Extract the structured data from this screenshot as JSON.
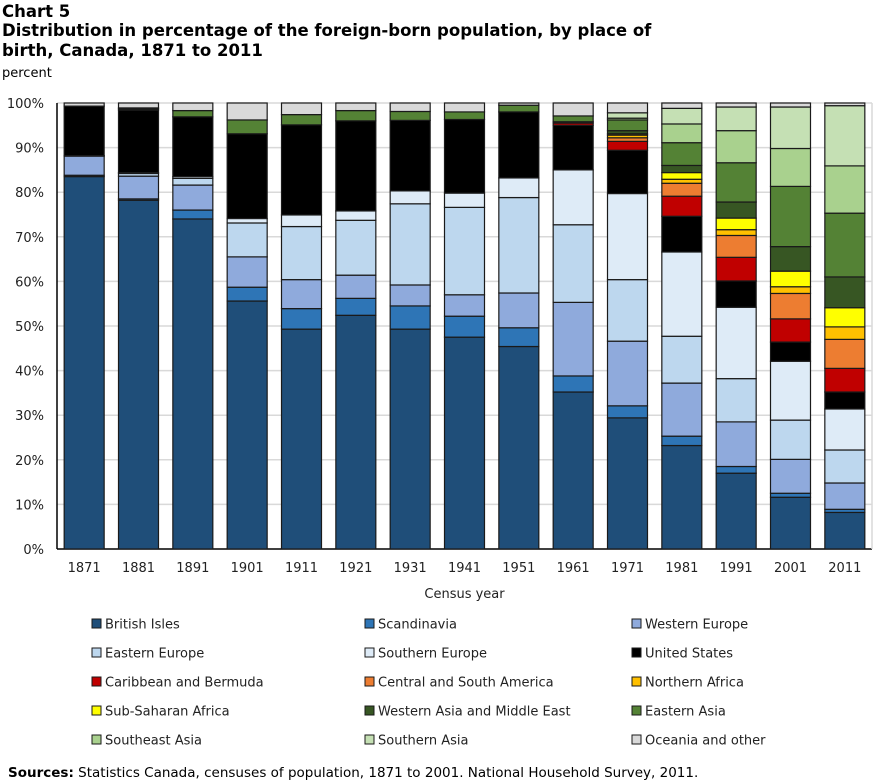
{
  "chart_data": {
    "type": "bar",
    "stacked": true,
    "label": "Chart 5",
    "title": "Distribution in percentage of the foreign-born population, by place of birth, Canada, 1871 to 2011",
    "ylabel": "percent",
    "xlabel": "Census year",
    "ylim": [
      0,
      100
    ],
    "yticks": [
      "0%",
      "10%",
      "20%",
      "30%",
      "40%",
      "50%",
      "60%",
      "70%",
      "80%",
      "90%",
      "100%"
    ],
    "grid": true,
    "legend_position": "bottom",
    "categories": [
      "1871",
      "1881",
      "1891",
      "1901",
      "1911",
      "1921",
      "1931",
      "1941",
      "1951",
      "1961",
      "1971",
      "1981",
      "1991",
      "2001",
      "2011"
    ],
    "series": [
      {
        "name": "British Isles",
        "color": "#1f4e79",
        "values": [
          83.5,
          78.2,
          74.0,
          55.6,
          49.3,
          52.4,
          49.3,
          47.5,
          45.4,
          35.2,
          29.4,
          23.2,
          17.0,
          11.6,
          8.2
        ]
      },
      {
        "name": "Scandinavia",
        "color": "#2e75b6",
        "values": [
          0.3,
          0.3,
          2.0,
          3.1,
          4.6,
          3.8,
          5.2,
          4.7,
          4.2,
          3.6,
          2.7,
          2.1,
          1.5,
          0.9,
          0.7
        ]
      },
      {
        "name": "Western Europe",
        "color": "#8faadc",
        "values": [
          4.3,
          5.1,
          5.6,
          6.8,
          6.5,
          5.2,
          4.7,
          4.8,
          7.8,
          16.5,
          14.5,
          11.9,
          10.0,
          7.6,
          5.9
        ]
      },
      {
        "name": "Eastern Europe",
        "color": "#bdd7ee",
        "values": [
          0.0,
          0.6,
          1.5,
          7.6,
          11.9,
          12.3,
          18.2,
          19.6,
          21.4,
          17.4,
          13.8,
          10.5,
          9.7,
          8.8,
          7.4
        ]
      },
      {
        "name": "Southern Europe",
        "color": "#deebf7",
        "values": [
          0.1,
          0.2,
          0.4,
          1.0,
          2.6,
          2.1,
          2.9,
          3.2,
          4.4,
          12.3,
          19.3,
          18.9,
          16.0,
          13.2,
          9.2
        ]
      },
      {
        "name": "United States",
        "color": "#000000",
        "values": [
          11.1,
          14.0,
          13.4,
          19.0,
          20.2,
          20.2,
          15.8,
          16.5,
          14.8,
          10.0,
          9.7,
          8.0,
          5.9,
          4.3,
          3.8
        ]
      },
      {
        "name": "Caribbean and Bermuda",
        "color": "#c00000",
        "values": [
          0,
          0,
          0,
          0,
          0,
          0,
          0,
          0,
          0,
          0.5,
          2.0,
          4.5,
          5.3,
          5.2,
          5.3
        ]
      },
      {
        "name": "Central and South America",
        "color": "#ed7d31",
        "values": [
          0,
          0,
          0,
          0,
          0,
          0,
          0,
          0,
          0,
          0,
          0.8,
          2.9,
          4.9,
          5.7,
          6.5
        ]
      },
      {
        "name": "Northern Africa",
        "color": "#ffc000",
        "values": [
          0,
          0,
          0,
          0,
          0,
          0,
          0,
          0,
          0,
          0,
          0.6,
          0.9,
          1.3,
          1.5,
          2.8
        ]
      },
      {
        "name": "Sub-Saharan Africa",
        "color": "#ffff00",
        "values": [
          0,
          0,
          0,
          0,
          0,
          0,
          0,
          0,
          0,
          0,
          0.3,
          1.5,
          2.6,
          3.5,
          4.3
        ]
      },
      {
        "name": "Western Asia and Middle East",
        "color": "#375623",
        "values": [
          0,
          0.3,
          0,
          0,
          0,
          0,
          0,
          0,
          0,
          0.3,
          0.7,
          1.6,
          3.6,
          5.5,
          6.9
        ]
      },
      {
        "name": "Eastern Asia",
        "color": "#548235",
        "values": [
          0,
          0.2,
          1.4,
          3.1,
          2.3,
          2.3,
          2.0,
          1.7,
          1.5,
          1.3,
          2.4,
          5.1,
          8.8,
          13.5,
          14.3
        ]
      },
      {
        "name": "Southeast Asia",
        "color": "#a9d18e",
        "values": [
          0,
          0,
          0,
          0,
          0,
          0,
          0,
          0,
          0,
          0,
          0.4,
          4.2,
          7.2,
          8.5,
          10.6
        ]
      },
      {
        "name": "Southern Asia",
        "color": "#c5e0b4",
        "values": [
          0,
          0,
          0,
          0,
          0,
          0,
          0,
          0,
          0,
          0,
          1.2,
          3.5,
          5.3,
          9.3,
          13.5
        ]
      },
      {
        "name": "Oceania and other",
        "color": "#d9d9d9",
        "values": [
          0.7,
          1.1,
          1.7,
          3.8,
          2.6,
          1.7,
          1.9,
          2.0,
          0.5,
          2.9,
          2.2,
          1.2,
          0.9,
          0.9,
          0.6
        ]
      }
    ]
  },
  "sources": {
    "label": "Sources:",
    "text": " Statistics Canada, censuses of population, 1871 to 2001. National Household Survey, 2011."
  }
}
